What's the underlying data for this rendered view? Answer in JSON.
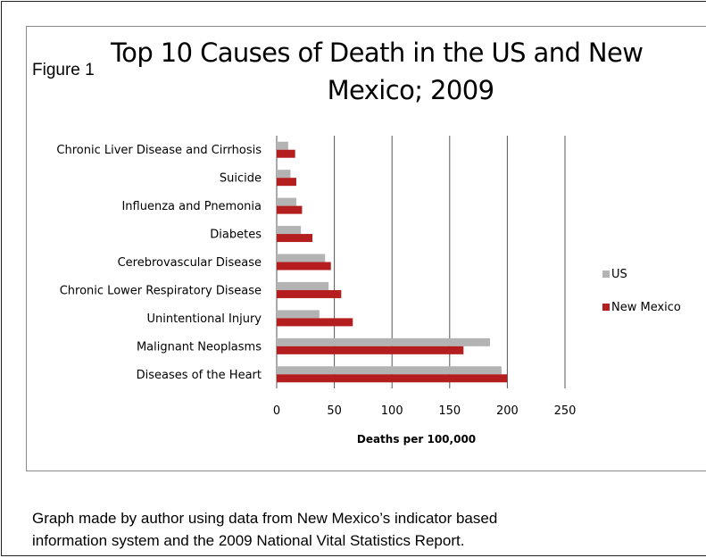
{
  "figure_label": "Figure 1",
  "title_line1": "Top 10 Causes of Death in the US and New",
  "title_line2": "Mexico; 2009",
  "caption_line1": "Graph made by author using data from New Mexico’s indicator based",
  "caption_line2": "information system and the 2009 National Vital Statistics Report.",
  "colors": {
    "us": "#b3b3b3",
    "new_mexico": "#b41e1e",
    "grid": "#555555"
  },
  "chart_data": {
    "type": "bar",
    "orientation": "horizontal",
    "categories": [
      "Diseases of the Heart",
      "Malignant Neoplasms",
      "Unintentional Injury",
      "Chronic Lower Respiratory Disease",
      "Cerebrovascular Disease",
      "Diabetes",
      "Influenza and Pnemonia",
      "Suicide",
      "Chronic Liver Disease and Cirrhosis"
    ],
    "series": [
      {
        "name": "US",
        "values": [
          195,
          185,
          37,
          45,
          42,
          21,
          17,
          12,
          10
        ]
      },
      {
        "name": "New Mexico",
        "values": [
          200,
          162,
          66,
          56,
          47,
          31,
          22,
          17,
          16
        ]
      }
    ],
    "xlabel": "Deaths per 100,000",
    "xlim": [
      0,
      250
    ],
    "xticks": [
      0,
      50,
      100,
      150,
      200,
      250
    ],
    "grid": true,
    "legend_position": "right"
  }
}
